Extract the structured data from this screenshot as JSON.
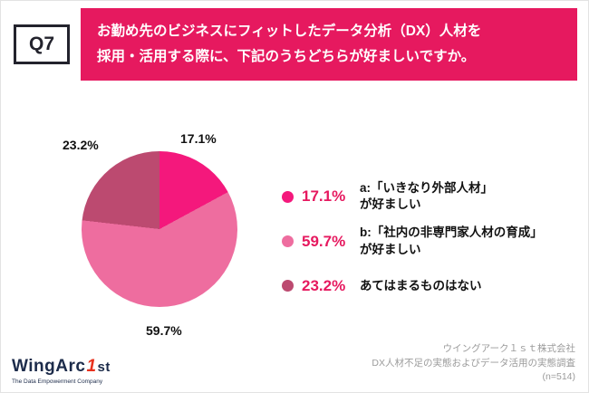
{
  "header": {
    "q_label": "Q7",
    "title_line1": "お勤め先のビジネスにフィットしたデータ分析（DX）人材を",
    "title_line2": "採用・活用する際に、下記のうちどちらが好ましいですか。",
    "banner_color": "#e6195f"
  },
  "chart_data": {
    "type": "pie",
    "title": "お勤め先のビジネスにフィットしたデータ分析（DX）人材を採用・活用する際に、下記のうちどちらが好ましいですか。",
    "direction": "clockwise",
    "start_angle_deg": 0,
    "legend_position": "right",
    "slices": [
      {
        "label": "a:「いきなり外部人材」が好ましい",
        "value": 17.1,
        "color": "#f4187c"
      },
      {
        "label": "b:「社内の非専門家人材の育成」が好ましい",
        "value": 59.7,
        "color": "#ee6d9f"
      },
      {
        "label": "あてはまるものはない",
        "value": 23.2,
        "color": "#bc4a70"
      }
    ],
    "value_labels": {
      "a": "17.1%",
      "b": "59.7%",
      "c": "23.2%"
    }
  },
  "legend": {
    "percent_color": "#e6195f",
    "items": [
      {
        "percent": "17.1%",
        "label": "a:「いきなり外部人材」\nが好ましい"
      },
      {
        "percent": "59.7%",
        "label": "b:「社内の非専門家人材の育成」\nが好ましい"
      },
      {
        "percent": "23.2%",
        "label": "あてはまるものはない"
      }
    ]
  },
  "footer": {
    "logo_main": "WingArc",
    "logo_one": "1",
    "logo_st": "st",
    "logo_tagline": "The Data Empowerment Company",
    "credit_line1": "ウイングアーク１ｓｔ株式会社",
    "credit_line2": "DX人材不足の実態およびデータ活用の実態調査",
    "credit_line3": "(n=514)"
  }
}
